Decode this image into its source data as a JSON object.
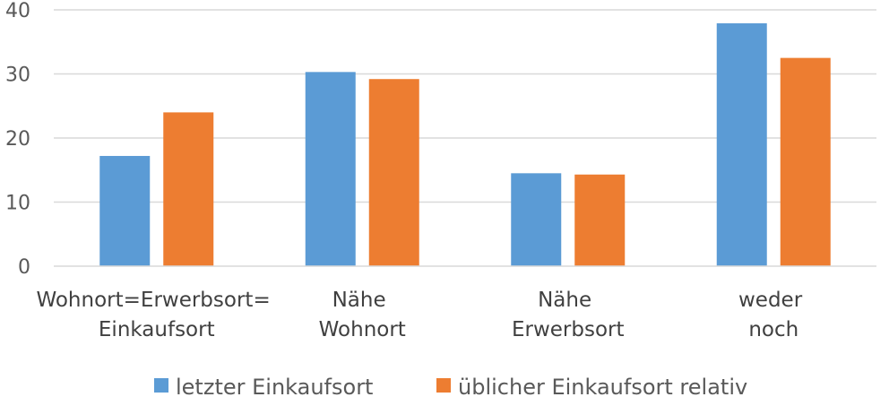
{
  "chart_data": {
    "type": "bar",
    "categories": [
      [
        "Wohnort=Erwerbsort=",
        "Einkaufsort"
      ],
      [
        "Nähe",
        "Wohnort"
      ],
      [
        "Nähe",
        "Erwerbsort"
      ],
      [
        "weder",
        "noch"
      ]
    ],
    "series": [
      {
        "name": "letzter Einkaufsort",
        "color": "#5b9bd5",
        "values": [
          17.2,
          30.3,
          14.5,
          37.9
        ]
      },
      {
        "name": "üblicher Einkaufsort relativ",
        "color": "#ed7d31",
        "values": [
          24.0,
          29.2,
          14.3,
          32.5
        ]
      }
    ],
    "ylim": [
      0,
      40
    ],
    "yticks": [
      "0",
      "10",
      "20",
      "30",
      "40"
    ],
    "grid": true,
    "legend_position": "bottom",
    "title": "",
    "xlabel": "",
    "ylabel": ""
  }
}
